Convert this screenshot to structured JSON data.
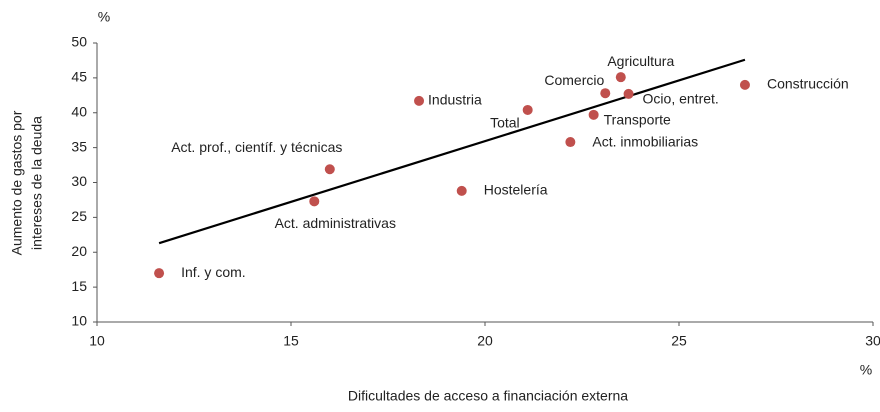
{
  "chart_data": {
    "type": "scatter",
    "ylabel": [
      "Aumento de gastos por",
      "intereses de la deuda"
    ],
    "xlabel": "Dificultades de acceso a financiación externa",
    "y_unit": "%",
    "x_unit": "%",
    "color": "#c0504d",
    "labels": [
      "Inf. y com.",
      "Act. administrativas",
      "Act. prof., científ. y técnicas",
      "Industria",
      "Hostelería",
      "Total",
      "Act. inmobiliarias",
      "Transporte",
      "Comercio",
      "Agricultura",
      "Ocio, entret.",
      "Construcción"
    ],
    "x": [
      11.6,
      15.6,
      16.0,
      18.3,
      19.4,
      21.1,
      22.2,
      22.8,
      23.1,
      23.5,
      23.7,
      26.7
    ],
    "y": [
      17.0,
      27.3,
      31.9,
      41.7,
      28.8,
      40.4,
      35.8,
      39.7,
      42.8,
      45.1,
      42.7,
      44.0
    ],
    "trendline": {
      "x": [
        11.6,
        26.7
      ],
      "y": [
        21.3,
        47.6
      ],
      "color": "#000000"
    },
    "xlim": [
      10,
      30
    ],
    "xticks": [
      10,
      15,
      20,
      25,
      30
    ],
    "ylim": [
      10,
      50
    ],
    "yticks": [
      10,
      15,
      20,
      25,
      30,
      35,
      40,
      45,
      50
    ]
  }
}
